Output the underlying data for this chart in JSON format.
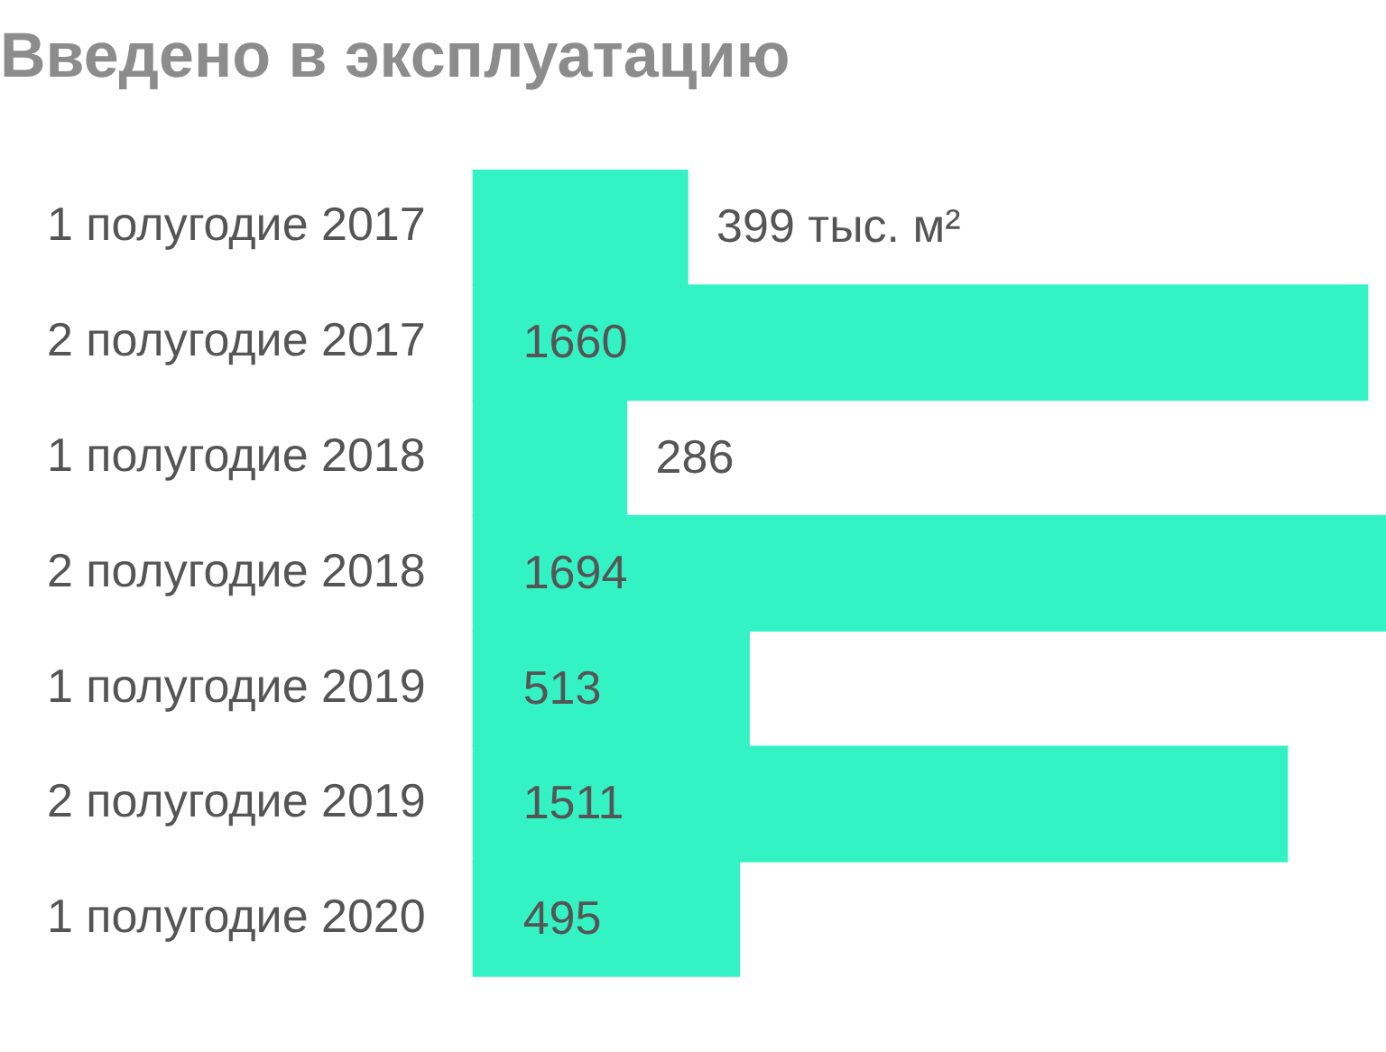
{
  "chart_data": {
    "type": "bar",
    "orientation": "horizontal",
    "title": "Введено в эксплуатацию",
    "categories": [
      "1 полугодие 2017",
      "2 полугодие 2017",
      "1 полугодие 2018",
      "2 полугодие 2018",
      "1 полугодие 2019",
      "2 полугодие 2019",
      "1 полугодие 2020"
    ],
    "values": [
      399,
      1660,
      286,
      1694,
      513,
      1511,
      495
    ],
    "value_labels": [
      "399 тыс. м²",
      "1660",
      "286",
      "1694",
      "513",
      "1511",
      "495"
    ],
    "color": "#33f2c4",
    "legend": false
  }
}
